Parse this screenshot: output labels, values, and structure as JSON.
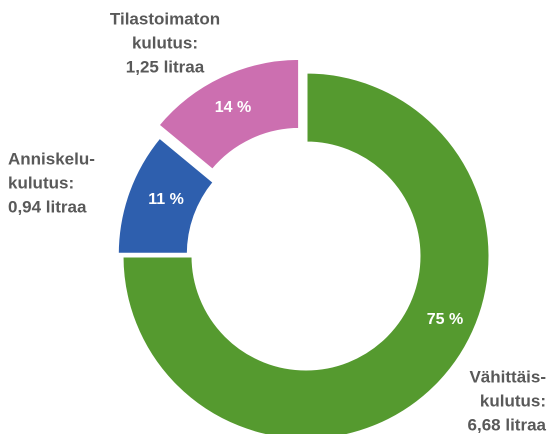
{
  "chart_data": {
    "type": "donut",
    "categories": [
      [
        "Vähittäis-",
        "kulutus:",
        "6,68 litraa"
      ],
      [
        "Anniskelu-",
        "kulutus:",
        "0,94 litraa"
      ],
      [
        "Tilastoimaton",
        "kulutus:",
        "1,25 litraa"
      ]
    ],
    "values": [
      75,
      11,
      14
    ],
    "value_labels": [
      "75 %",
      "11 %",
      "14 %"
    ],
    "colors": [
      "#559a2f",
      "#2e5fae",
      "#cc6fb0"
    ]
  }
}
